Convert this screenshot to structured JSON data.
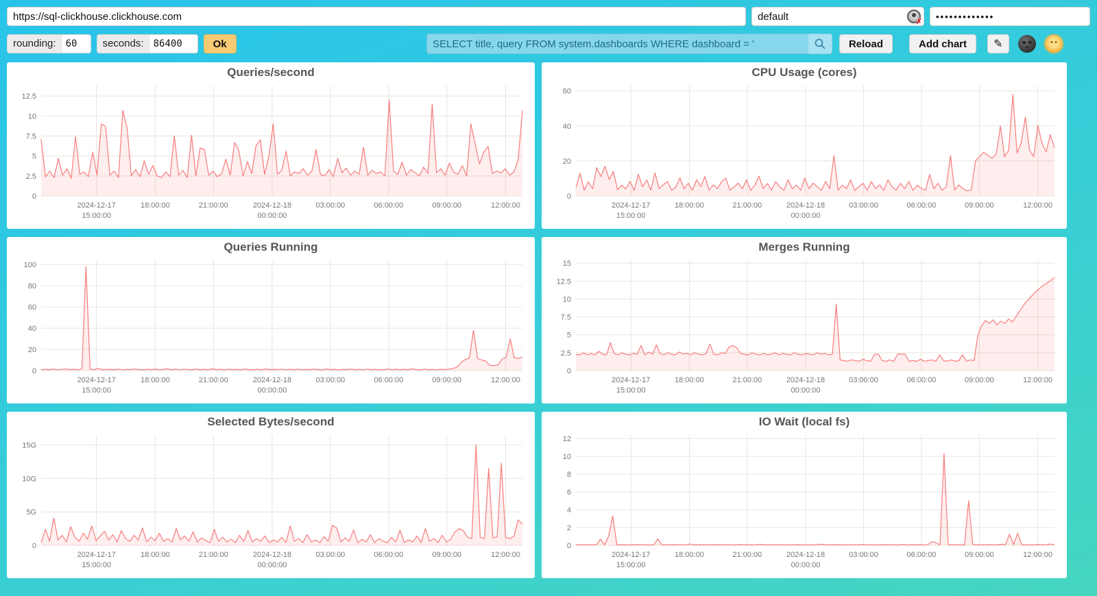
{
  "topbar": {
    "url": "https://sql-clickhouse.clickhouse.com",
    "user": "default",
    "password_masked": "•••••••••••••"
  },
  "controls": {
    "rounding_label": "rounding:",
    "rounding_value": "60",
    "seconds_label": "seconds:",
    "seconds_value": "86400",
    "ok_label": "Ok",
    "query": "SELECT title, query FROM system.dashboards WHERE dashboard = '",
    "reload_label": "Reload",
    "add_chart_label": "Add chart",
    "edit_icon_glyph": "✎"
  },
  "theme": {
    "background_top": "#29c3ea",
    "background_bottom": "#46d6c0",
    "panel": "#ffffff",
    "line": "#f77c7c",
    "fill": "rgba(247,124,124,0.13)",
    "grid": "#e6e4dc",
    "title": "#555555",
    "tick": "#767676",
    "query_bg": "#87d7ec",
    "query_text": "#1d6b84",
    "ok_bg": "#f8ca74",
    "button_bg": "#f1f1f1"
  },
  "chart_data": [
    {
      "type": "area",
      "title": "Queries/second",
      "vmax": 13.8,
      "yticks": [
        [
          0,
          "0"
        ],
        [
          2.5,
          "2.5"
        ],
        [
          5,
          "5"
        ],
        [
          7.5,
          "7.5"
        ],
        [
          10,
          "10"
        ],
        [
          12.5,
          "12.5"
        ]
      ],
      "xticks": [
        {
          "f": 0.115,
          "lines": [
            "2024-12-17",
            "15:00:00"
          ]
        },
        {
          "f": 0.237,
          "lines": [
            "18:00:00"
          ]
        },
        {
          "f": 0.358,
          "lines": [
            "21:00:00"
          ]
        },
        {
          "f": 0.48,
          "lines": [
            "2024-12-18",
            "00:00:00"
          ]
        },
        {
          "f": 0.601,
          "lines": [
            "03:00:00"
          ]
        },
        {
          "f": 0.722,
          "lines": [
            "06:00:00"
          ]
        },
        {
          "f": 0.843,
          "lines": [
            "09:00:00"
          ]
        },
        {
          "f": 0.965,
          "lines": [
            "12:00:00"
          ]
        }
      ],
      "values": [
        7.1,
        2.4,
        3.1,
        2.3,
        4.7,
        2.6,
        3.4,
        2.2,
        7.4,
        2.7,
        3.0,
        2.4,
        5.5,
        2.6,
        9.0,
        8.7,
        2.6,
        3.1,
        2.3,
        10.7,
        8.5,
        2.5,
        3.3,
        2.4,
        4.4,
        2.7,
        3.8,
        2.5,
        2.3,
        3.0,
        2.4,
        7.5,
        2.6,
        3.2,
        2.3,
        7.6,
        2.5,
        6.0,
        5.8,
        2.6,
        3.1,
        2.4,
        2.8,
        4.6,
        2.6,
        6.7,
        5.7,
        2.5,
        4.3,
        2.8,
        6.3,
        7.0,
        2.7,
        5.0,
        9.0,
        2.7,
        3.2,
        5.6,
        2.5,
        3.0,
        2.8,
        3.4,
        2.6,
        3.1,
        5.8,
        2.7,
        2.5,
        3.3,
        2.4,
        4.7,
        2.9,
        3.5,
        2.6,
        3.1,
        2.7,
        6.1,
        2.6,
        3.2,
        2.8,
        3.0,
        2.5,
        12.0,
        3.1,
        2.7,
        4.2,
        2.6,
        3.3,
        2.9,
        2.5,
        3.6,
        2.8,
        11.5,
        2.9,
        3.4,
        2.6,
        4.1,
        3.0,
        2.7,
        3.8,
        2.5,
        9.0,
        6.5,
        4.0,
        5.5,
        6.2,
        2.8,
        3.1,
        2.9,
        3.4,
        2.6,
        3.0,
        4.5,
        10.7
      ]
    },
    {
      "type": "area",
      "title": "CPU Usage (cores)",
      "vmax": 63,
      "yticks": [
        [
          0,
          "0"
        ],
        [
          20,
          "20"
        ],
        [
          40,
          "40"
        ],
        [
          60,
          "60"
        ]
      ],
      "xticks": [
        {
          "f": 0.115,
          "lines": [
            "2024-12-17",
            "15:00:00"
          ]
        },
        {
          "f": 0.237,
          "lines": [
            "18:00:00"
          ]
        },
        {
          "f": 0.358,
          "lines": [
            "21:00:00"
          ]
        },
        {
          "f": 0.48,
          "lines": [
            "2024-12-18",
            "00:00:00"
          ]
        },
        {
          "f": 0.601,
          "lines": [
            "03:00:00"
          ]
        },
        {
          "f": 0.722,
          "lines": [
            "06:00:00"
          ]
        },
        {
          "f": 0.843,
          "lines": [
            "09:00:00"
          ]
        },
        {
          "f": 0.965,
          "lines": [
            "12:00:00"
          ]
        }
      ],
      "values": [
        4.8,
        13.0,
        3.2,
        8.1,
        4.1,
        16.2,
        11.0,
        17.0,
        9.3,
        14.0,
        3.4,
        6.2,
        4.0,
        8.3,
        3.1,
        12.4,
        5.2,
        9.1,
        3.3,
        13.2,
        4.2,
        6.4,
        8.2,
        3.2,
        5.1,
        10.3,
        4.1,
        7.2,
        3.3,
        9.2,
        5.3,
        11.1,
        3.2,
        6.3,
        4.2,
        8.1,
        10.2,
        3.3,
        5.2,
        7.3,
        4.1,
        9.2,
        3.2,
        6.1,
        11.3,
        4.2,
        7.1,
        3.3,
        8.2,
        5.1,
        3.2,
        9.3,
        4.1,
        6.2,
        3.3,
        10.1,
        4.2,
        7.3,
        5.2,
        3.1,
        8.3,
        4.2,
        23.0,
        3.3,
        6.2,
        4.1,
        9.1,
        3.2,
        5.3,
        7.2,
        3.3,
        8.1,
        4.2,
        6.3,
        3.2,
        9.2,
        5.1,
        3.3,
        7.2,
        4.1,
        8.3,
        3.2,
        6.1,
        4.3,
        3.2,
        12.2,
        4.1,
        7.2,
        3.3,
        5.2,
        23.0,
        3.2,
        6.3,
        4.1,
        2.9,
        3.4,
        20.0,
        22.5,
        24.8,
        23.2,
        21.5,
        24.0,
        40.0,
        22.3,
        26.1,
        58.0,
        24.5,
        30.2,
        45.0,
        26.3,
        22.4,
        40.3,
        30.1,
        25.2,
        35.0,
        27.4
      ]
    },
    {
      "type": "area",
      "title": "Queries Running",
      "vmax": 104,
      "yticks": [
        [
          0,
          "0"
        ],
        [
          20,
          "20"
        ],
        [
          40,
          "40"
        ],
        [
          60,
          "60"
        ],
        [
          80,
          "80"
        ],
        [
          100,
          "100"
        ]
      ],
      "xticks": [
        {
          "f": 0.115,
          "lines": [
            "2024-12-17",
            "15:00:00"
          ]
        },
        {
          "f": 0.237,
          "lines": [
            "18:00:00"
          ]
        },
        {
          "f": 0.358,
          "lines": [
            "21:00:00"
          ]
        },
        {
          "f": 0.48,
          "lines": [
            "2024-12-18",
            "00:00:00"
          ]
        },
        {
          "f": 0.601,
          "lines": [
            "03:00:00"
          ]
        },
        {
          "f": 0.722,
          "lines": [
            "06:00:00"
          ]
        },
        {
          "f": 0.843,
          "lines": [
            "09:00:00"
          ]
        },
        {
          "f": 0.965,
          "lines": [
            "12:00:00"
          ]
        }
      ],
      "values": [
        0.8,
        1.2,
        0.9,
        1.5,
        0.8,
        1.1,
        1.6,
        0.9,
        1.3,
        0.8,
        1.9,
        98.0,
        1.4,
        0.9,
        2.1,
        1.0,
        1.1,
        1.2,
        0.9,
        1.4,
        0.8,
        1.2,
        0.9,
        1.6,
        1.0,
        0.8,
        1.3,
        0.9,
        1.5,
        0.8,
        1.2,
        1.7,
        0.9,
        1.3,
        0.8,
        1.4,
        1.0,
        0.9,
        1.5,
        0.8,
        1.2,
        0.9,
        1.6,
        1.0,
        1.3,
        0.8,
        1.4,
        0.9,
        1.2,
        0.8,
        1.5,
        1.0,
        0.9,
        1.3,
        0.8,
        1.6,
        0.9,
        1.2,
        1.0,
        1.4,
        0.8,
        1.3,
        0.9,
        1.5,
        0.8,
        1.2,
        0.9,
        1.4,
        1.0,
        0.8,
        1.6,
        0.9,
        1.3,
        0.8,
        1.2,
        1.0,
        1.5,
        0.9,
        1.3,
        0.8,
        1.4,
        0.9,
        1.2,
        0.8,
        1.0,
        1.5,
        0.9,
        1.3,
        0.8,
        1.2,
        0.9,
        1.6,
        1.0,
        0.8,
        1.4,
        0.9,
        1.2,
        0.8,
        1.3,
        1.0,
        1.5,
        2.0,
        3.5,
        8.0,
        10.5,
        12.0,
        38.0,
        11.5,
        10.0,
        9.0,
        5.0,
        4.8,
        5.2,
        11.0,
        12.5,
        30.0,
        12.0,
        11.5,
        13.0
      ]
    },
    {
      "type": "area",
      "title": "Merges Running",
      "vmax": 15.4,
      "yticks": [
        [
          0,
          "0"
        ],
        [
          2.5,
          "2.5"
        ],
        [
          5,
          "5"
        ],
        [
          7.5,
          "7.5"
        ],
        [
          10,
          "10"
        ],
        [
          12.5,
          "12.5"
        ],
        [
          15,
          "15"
        ]
      ],
      "xticks": [
        {
          "f": 0.115,
          "lines": [
            "2024-12-17",
            "15:00:00"
          ]
        },
        {
          "f": 0.237,
          "lines": [
            "18:00:00"
          ]
        },
        {
          "f": 0.358,
          "lines": [
            "21:00:00"
          ]
        },
        {
          "f": 0.48,
          "lines": [
            "2024-12-18",
            "00:00:00"
          ]
        },
        {
          "f": 0.601,
          "lines": [
            "03:00:00"
          ]
        },
        {
          "f": 0.722,
          "lines": [
            "06:00:00"
          ]
        },
        {
          "f": 0.843,
          "lines": [
            "09:00:00"
          ]
        },
        {
          "f": 0.965,
          "lines": [
            "12:00:00"
          ]
        }
      ],
      "values": [
        2.3,
        2.2,
        2.5,
        2.2,
        2.4,
        2.2,
        2.7,
        2.3,
        2.2,
        3.9,
        2.4,
        2.2,
        2.5,
        2.3,
        2.2,
        2.4,
        2.3,
        3.5,
        2.2,
        2.6,
        2.3,
        3.6,
        2.4,
        2.2,
        2.5,
        2.3,
        2.2,
        2.6,
        2.3,
        2.4,
        2.2,
        2.5,
        2.3,
        2.2,
        2.4,
        3.7,
        2.3,
        2.2,
        2.5,
        2.4,
        3.3,
        3.5,
        3.2,
        2.4,
        2.3,
        2.2,
        2.5,
        2.3,
        2.2,
        2.4,
        2.2,
        2.3,
        2.5,
        2.2,
        2.4,
        2.3,
        2.2,
        2.5,
        2.3,
        2.2,
        2.4,
        2.3,
        2.2,
        2.5,
        2.3,
        2.4,
        2.2,
        2.3,
        9.3,
        1.5,
        1.4,
        1.3,
        1.5,
        1.4,
        1.3,
        1.6,
        1.4,
        1.3,
        2.3,
        2.3,
        1.4,
        1.3,
        1.5,
        1.3,
        2.3,
        2.3,
        2.3,
        1.3,
        1.4,
        1.3,
        1.6,
        1.3,
        1.4,
        1.5,
        1.3,
        2.2,
        1.4,
        1.3,
        1.5,
        1.3,
        1.4,
        2.2,
        1.3,
        1.5,
        1.4,
        5.0,
        6.3,
        7.0,
        6.6,
        7.1,
        6.4,
        6.9,
        6.6,
        7.2,
        6.8,
        7.6,
        8.4,
        9.2,
        9.8,
        10.4,
        11.0,
        11.4,
        11.9,
        12.2,
        12.6,
        13.0
      ]
    },
    {
      "type": "area",
      "title": "Selected Bytes/second",
      "vmax": 16.5,
      "yticks": [
        [
          0,
          "0"
        ],
        [
          5,
          "5G"
        ],
        [
          10,
          "10G"
        ],
        [
          15,
          "15G"
        ]
      ],
      "xticks": [
        {
          "f": 0.115,
          "lines": [
            "2024-12-17",
            "15:00:00"
          ]
        },
        {
          "f": 0.237,
          "lines": [
            "18:00:00"
          ]
        },
        {
          "f": 0.358,
          "lines": [
            "21:00:00"
          ]
        },
        {
          "f": 0.48,
          "lines": [
            "2024-12-18",
            "00:00:00"
          ]
        },
        {
          "f": 0.601,
          "lines": [
            "03:00:00"
          ]
        },
        {
          "f": 0.722,
          "lines": [
            "06:00:00"
          ]
        },
        {
          "f": 0.843,
          "lines": [
            "09:00:00"
          ]
        },
        {
          "f": 0.965,
          "lines": [
            "12:00:00"
          ]
        }
      ],
      "values": [
        0.4,
        2.4,
        0.6,
        4.1,
        0.8,
        1.5,
        0.5,
        2.8,
        1.2,
        0.6,
        1.8,
        0.9,
        2.9,
        0.7,
        1.4,
        2.1,
        0.8,
        1.6,
        0.5,
        2.2,
        1.0,
        0.6,
        1.5,
        0.8,
        2.6,
        0.5,
        1.2,
        0.7,
        1.8,
        0.6,
        1.0,
        0.5,
        2.5,
        0.8,
        1.4,
        0.6,
        2.0,
        0.5,
        1.1,
        0.7,
        0.4,
        2.4,
        0.6,
        1.2,
        0.5,
        0.9,
        0.4,
        1.5,
        0.6,
        2.2,
        0.5,
        1.0,
        0.6,
        1.4,
        0.4,
        0.8,
        0.5,
        1.2,
        0.4,
        2.9,
        0.6,
        1.0,
        0.4,
        1.6,
        0.5,
        0.8,
        0.4,
        1.3,
        0.6,
        3.0,
        2.6,
        0.5,
        1.1,
        0.6,
        2.3,
        0.4,
        0.9,
        0.5,
        1.6,
        0.4,
        1.0,
        0.6,
        0.4,
        1.2,
        0.5,
        2.3,
        0.4,
        0.8,
        0.5,
        1.4,
        0.4,
        2.5,
        0.6,
        1.0,
        0.4,
        1.5,
        0.5,
        0.9,
        2.0,
        2.5,
        2.2,
        1.2,
        1.0,
        15.0,
        1.2,
        1.0,
        11.5,
        1.1,
        1.3,
        12.3,
        1.2,
        1.0,
        1.4,
        3.8,
        3.2
      ]
    },
    {
      "type": "area",
      "title": "IO Wait (local fs)",
      "vmax": 12.4,
      "yticks": [
        [
          0,
          "0"
        ],
        [
          2,
          "2"
        ],
        [
          4,
          "4"
        ],
        [
          6,
          "6"
        ],
        [
          8,
          "8"
        ],
        [
          10,
          "10"
        ],
        [
          12,
          "12"
        ]
      ],
      "xticks": [
        {
          "f": 0.115,
          "lines": [
            "2024-12-17",
            "15:00:00"
          ]
        },
        {
          "f": 0.237,
          "lines": [
            "18:00:00"
          ]
        },
        {
          "f": 0.358,
          "lines": [
            "21:00:00"
          ]
        },
        {
          "f": 0.48,
          "lines": [
            "2024-12-18",
            "00:00:00"
          ]
        },
        {
          "f": 0.601,
          "lines": [
            "03:00:00"
          ]
        },
        {
          "f": 0.722,
          "lines": [
            "06:00:00"
          ]
        },
        {
          "f": 0.843,
          "lines": [
            "09:00:00"
          ]
        },
        {
          "f": 0.965,
          "lines": [
            "12:00:00"
          ]
        }
      ],
      "values": [
        0.05,
        0.05,
        0.08,
        0.05,
        0.06,
        0.05,
        0.7,
        0.05,
        1.05,
        3.3,
        0.08,
        0.05,
        0.06,
        0.05,
        0.05,
        0.08,
        0.05,
        0.06,
        0.05,
        0.05,
        0.7,
        0.05,
        0.06,
        0.05,
        0.08,
        0.05,
        0.05,
        0.06,
        0.15,
        0.05,
        0.08,
        0.05,
        0.06,
        0.05,
        0.05,
        0.08,
        0.05,
        0.05,
        0.06,
        0.05,
        0.08,
        0.05,
        0.06,
        0.05,
        0.05,
        0.12,
        0.05,
        0.06,
        0.05,
        0.08,
        0.05,
        0.05,
        0.06,
        0.05,
        0.08,
        0.05,
        0.06,
        0.05,
        0.05,
        0.08,
        0.12,
        0.05,
        0.06,
        0.05,
        0.08,
        0.05,
        0.05,
        0.06,
        0.05,
        0.05,
        0.08,
        0.05,
        0.06,
        0.05,
        0.05,
        0.08,
        0.05,
        0.06,
        0.05,
        0.05,
        0.1,
        0.05,
        0.06,
        0.05,
        0.08,
        0.05,
        0.06,
        0.4,
        0.3,
        0.05,
        10.3,
        0.08,
        0.05,
        0.06,
        0.05,
        0.05,
        5.0,
        0.1,
        0.05,
        0.06,
        0.05,
        0.08,
        0.05,
        0.05,
        0.12,
        0.06,
        1.25,
        0.08,
        1.35,
        0.05,
        0.06,
        0.05,
        0.05,
        0.08,
        0.05,
        0.06,
        0.15,
        0.05
      ]
    }
  ]
}
